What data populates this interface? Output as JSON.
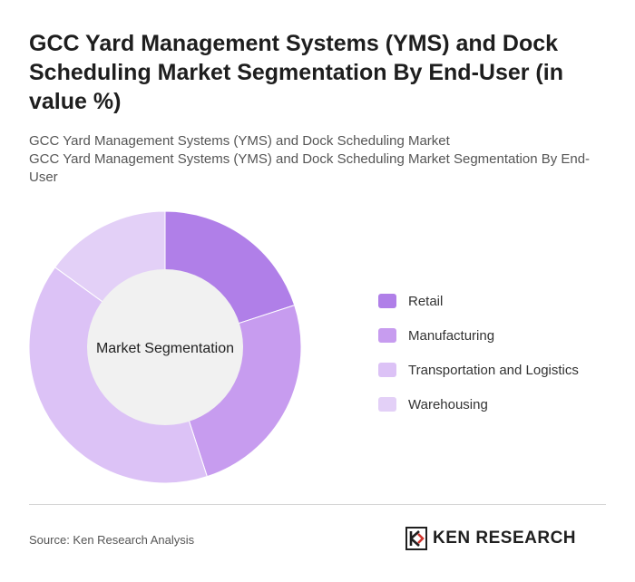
{
  "title": "GCC Yard Management Systems (YMS) and Dock Scheduling Market Segmentation By End-User (in value %)",
  "subtitle_line1": "GCC Yard Management Systems (YMS) and Dock Scheduling Market",
  "subtitle_line2": "GCC Yard Management Systems (YMS) and Dock Scheduling Market Segmentation By End-User",
  "source": "Source: Ken Research Analysis",
  "brand": "KEN RESEARCH",
  "brand_icon": "ken-research-logo-icon",
  "chart_data": {
    "type": "pie",
    "variant": "donut",
    "center_label": "Market Segmentation",
    "legend_position": "right",
    "categories": [
      "Retail",
      "Manufacturing",
      "Transportation and Logistics",
      "Warehousing"
    ],
    "values": [
      20,
      25,
      40,
      15
    ],
    "colors": [
      "#b07fe8",
      "#c79cef",
      "#dcc2f6",
      "#e3d0f7"
    ]
  }
}
